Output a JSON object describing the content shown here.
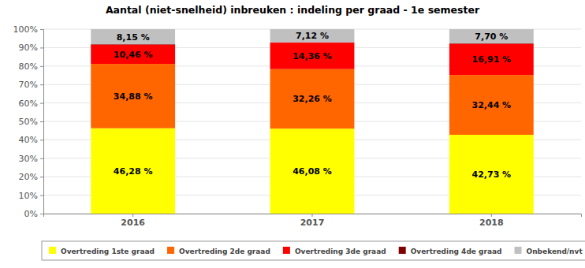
{
  "chart_data": {
    "type": "bar",
    "title": "Aantal (niet-snelheid) inbreuken : indeling per graad - 1e semester",
    "categories": [
      "2016",
      "2017",
      "2018"
    ],
    "stacked": true,
    "data_labels": true,
    "grid": true,
    "legend": "bottom",
    "ylim": [
      0,
      100
    ],
    "yticks": [
      {
        "value": 0,
        "label": "0%"
      },
      {
        "value": 10,
        "label": "10%"
      },
      {
        "value": 20,
        "label": "20%"
      },
      {
        "value": 30,
        "label": "30%"
      },
      {
        "value": 40,
        "label": "40%"
      },
      {
        "value": 50,
        "label": "50%"
      },
      {
        "value": 60,
        "label": "60%"
      },
      {
        "value": 70,
        "label": "70%"
      },
      {
        "value": 80,
        "label": "80%"
      },
      {
        "value": 90,
        "label": "90%"
      },
      {
        "value": 100,
        "label": "100%"
      }
    ],
    "series": [
      {
        "name": "Overtreding 1ste graad",
        "color": "#ffff00",
        "values": [
          46.28,
          46.08,
          42.73
        ],
        "value_labels": [
          "46,28 %",
          "46,08 %",
          "42,73 %"
        ]
      },
      {
        "name": "Overtreding 2de graad",
        "color": "#ff6600",
        "values": [
          34.88,
          32.26,
          32.44
        ],
        "value_labels": [
          "34,88 %",
          "32,26 %",
          "32,44 %"
        ]
      },
      {
        "name": "Overtreding 3de graad",
        "color": "#ff0000",
        "values": [
          10.46,
          14.36,
          16.91
        ],
        "value_labels": [
          "10,46 %",
          "14,36 %",
          "16,91 %"
        ]
      },
      {
        "name": "Overtreding 4de graad",
        "color": "#800000",
        "values": [
          0.23,
          0.18,
          0.22
        ]
      },
      {
        "name": "Onbekend/nvt",
        "color": "#c0c0c0",
        "values": [
          8.15,
          7.12,
          7.7
        ],
        "value_labels": [
          "8,15 %",
          "7,12 %",
          "7,70 %"
        ]
      }
    ]
  }
}
